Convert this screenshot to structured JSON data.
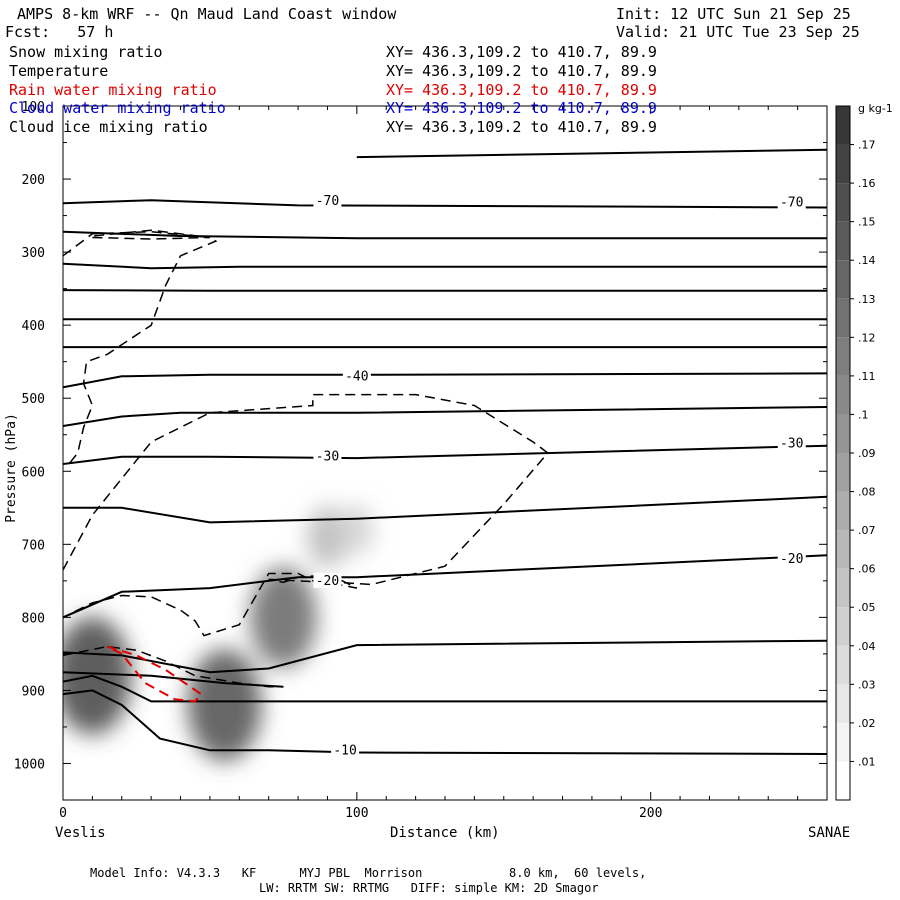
{
  "header": {
    "title": "AMPS 8-km WRF -- Qn Maud Land Coast window",
    "init": "Init: 12 UTC Sun 21 Sep 25",
    "forecast": "Fcst:   57 h",
    "valid": "Valid: 21 UTC Tue 23 Sep 25"
  },
  "legend": [
    {
      "label": "Snow mixing ratio",
      "xy": "XY= 436.3,109.2 to 410.7, 89.9",
      "color": "#000000"
    },
    {
      "label": "Temperature",
      "xy": "XY= 436.3,109.2 to 410.7, 89.9",
      "color": "#000000"
    },
    {
      "label": "Rain water mixing ratio",
      "xy": "XY= 436.3,109.2 to 410.7, 89.9",
      "color": "#e00000"
    },
    {
      "label": "Cloud water mixing ratio",
      "xy": "XY= 436.3,109.2 to 410.7, 89.9",
      "color": "#0000cc"
    },
    {
      "label": "Cloud ice mixing ratio",
      "xy": "XY= 436.3,109.2 to 410.7, 89.9",
      "color": "#000000"
    }
  ],
  "footer": {
    "line1": "Model Info: V4.3.3   KF      MYJ PBL  Morrison            8.0 km,  60 levels,",
    "line2": "LW: RRTM SW: RRTMG   DIFF: simple KM: 2D Smagor"
  },
  "chart_data": {
    "type": "contour",
    "xlabel": "Distance (km)",
    "ylabel": "Pressure (hPa)",
    "xlim": [
      0,
      260
    ],
    "ylim": [
      1050,
      100
    ],
    "x_ticks": [
      0,
      100,
      200
    ],
    "y_ticks": [
      100,
      200,
      300,
      400,
      500,
      600,
      700,
      800,
      900,
      1000
    ],
    "x_start_label": "Veslis",
    "x_end_label": "SANAE",
    "colorbar": {
      "unit": "g kg-1",
      "ticks": [
        ".01",
        ".02",
        ".03",
        ".04",
        ".05",
        ".06",
        ".07",
        ".08",
        ".09",
        ".1",
        ".11",
        ".12",
        ".13",
        ".14",
        ".15",
        ".16",
        ".17"
      ],
      "min": 0,
      "max": 0.18
    },
    "temperature_labels": [
      {
        "text": "-70",
        "x": 90,
        "p": 230
      },
      {
        "text": "-70",
        "x": 248,
        "p": 232
      },
      {
        "text": "-40",
        "x": 100,
        "p": 470
      },
      {
        "text": "-30",
        "x": 90,
        "p": 580
      },
      {
        "text": "-30",
        "x": 248,
        "p": 562
      },
      {
        "text": "-20",
        "x": 90,
        "p": 750
      },
      {
        "text": "-20",
        "x": 248,
        "p": 720
      },
      {
        "text": "-10",
        "x": 96,
        "p": 982
      }
    ],
    "temperature_isotherms": [
      {
        "x": [
          0,
          30,
          80,
          150,
          260
        ],
        "p": [
          233,
          229,
          236,
          237,
          239
        ]
      },
      {
        "x": [
          0,
          40,
          100,
          260
        ],
        "p": [
          272,
          278,
          281,
          281
        ]
      },
      {
        "x": [
          0,
          30,
          60,
          100,
          260
        ],
        "p": [
          316,
          322,
          320,
          320,
          320
        ]
      },
      {
        "x": [
          0,
          50,
          260
        ],
        "p": [
          352,
          353,
          353
        ]
      },
      {
        "x": [
          0,
          50,
          260
        ],
        "p": [
          392,
          392,
          392
        ]
      },
      {
        "x": [
          0,
          50,
          260
        ],
        "p": [
          430,
          430,
          430
        ]
      },
      {
        "x": [
          0,
          20,
          50,
          100,
          260
        ],
        "p": [
          485,
          470,
          468,
          468,
          466
        ]
      },
      {
        "x": [
          0,
          20,
          40,
          60,
          100,
          260
        ],
        "p": [
          538,
          525,
          520,
          520,
          520,
          512
        ]
      },
      {
        "x": [
          0,
          20,
          50,
          100,
          260
        ],
        "p": [
          590,
          580,
          580,
          582,
          565
        ]
      },
      {
        "x": [
          0,
          20,
          50,
          100,
          260
        ],
        "p": [
          650,
          650,
          670,
          665,
          635
        ]
      },
      {
        "x": [
          0,
          20,
          50,
          80,
          100,
          260
        ],
        "p": [
          800,
          765,
          760,
          745,
          745,
          715
        ]
      },
      {
        "x": [
          0,
          20,
          50,
          70,
          100,
          260
        ],
        "p": [
          848,
          852,
          875,
          870,
          838,
          832
        ]
      },
      {
        "x": [
          0,
          30,
          55,
          75
        ],
        "p": [
          875,
          880,
          890,
          895
        ]
      },
      {
        "x": [
          0,
          10,
          20,
          30,
          40,
          50,
          260
        ],
        "p": [
          888,
          880,
          895,
          915,
          915,
          915,
          915
        ]
      },
      {
        "x": [
          0,
          10,
          20,
          33,
          50,
          70,
          100,
          260
        ],
        "p": [
          905,
          900,
          920,
          966,
          982,
          982,
          985,
          987
        ]
      },
      {
        "x": [
          100,
          260
        ],
        "p": [
          170,
          160
        ]
      }
    ],
    "cloud_ice_contours": [
      {
        "x": [
          0,
          10,
          30,
          50,
          52,
          40,
          35,
          30,
          15,
          8,
          7,
          10,
          7,
          5,
          2,
          0
        ],
        "p": [
          305,
          275,
          272,
          280,
          285,
          305,
          345,
          400,
          440,
          450,
          480,
          510,
          540,
          575,
          590,
          590
        ]
      },
      {
        "x": [
          10,
          30,
          50,
          30,
          10
        ],
        "p": [
          280,
          282,
          280,
          270,
          278
        ]
      },
      {
        "x": [
          0,
          10,
          30,
          50,
          85,
          85,
          120,
          140,
          160,
          165,
          150,
          130,
          105,
          85,
          80,
          70,
          60,
          48,
          45,
          40,
          30,
          20,
          10,
          0
        ],
        "p": [
          735,
          660,
          560,
          520,
          510,
          495,
          495,
          510,
          560,
          575,
          645,
          730,
          755,
          750,
          740,
          740,
          810,
          825,
          805,
          790,
          772,
          770,
          780,
          800
        ]
      },
      {
        "x": [
          70,
          90,
          100,
          95,
          90,
          80,
          75,
          70
        ],
        "p": [
          748,
          752,
          760,
          750,
          742,
          745,
          752,
          748
        ]
      },
      {
        "x": [
          0,
          15,
          25,
          35,
          45,
          60,
          70,
          75
        ],
        "p": [
          852,
          840,
          845,
          860,
          880,
          890,
          895,
          895
        ]
      }
    ],
    "rain_water_contours": [
      {
        "x": [
          20,
          15,
          25,
          35,
          47,
          45,
          38,
          28,
          20
        ],
        "p": [
          850,
          840,
          852,
          872,
          905,
          915,
          912,
          890,
          850
        ]
      }
    ],
    "snow_maxima": [
      {
        "x": 10,
        "p": 880,
        "value": 0.16
      },
      {
        "x": 55,
        "p": 920,
        "value": 0.15
      },
      {
        "x": 75,
        "p": 800,
        "value": 0.13
      },
      {
        "x": 90,
        "p": 690,
        "value": 0.06
      },
      {
        "x": 100,
        "p": 680,
        "value": 0.04
      }
    ]
  }
}
